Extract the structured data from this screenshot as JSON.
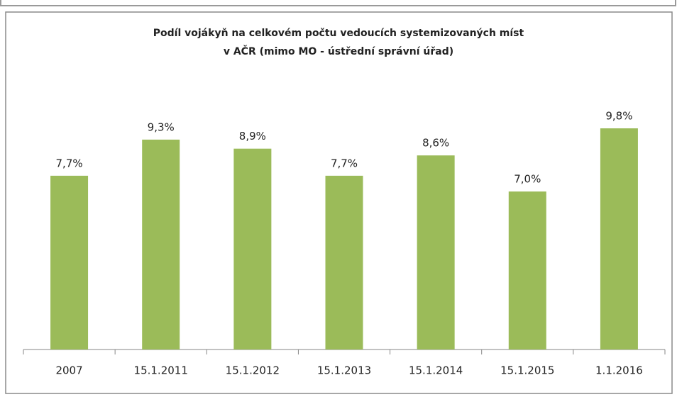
{
  "chart_data": {
    "type": "bar",
    "title": [
      "Podíl vojákyň na celkovém počtu vedoucích systemizovaných míst",
      "v AČR  (mimo MO - ústřední správní úřad)"
    ],
    "categories": [
      "2007",
      "15.1.2011",
      "15.1.2012",
      "15.1.2013",
      "15.1.2014",
      "15.1.2015",
      "1.1.2016"
    ],
    "values": [
      7.7,
      9.3,
      8.9,
      7.7,
      8.6,
      7.0,
      9.8
    ],
    "value_labels": [
      "7,7%",
      "9,3%",
      "8,9%",
      "7,7%",
      "8,6%",
      "7,0%",
      "9,8%"
    ],
    "color": "#9bbb59",
    "ylim": [
      0,
      12
    ]
  }
}
